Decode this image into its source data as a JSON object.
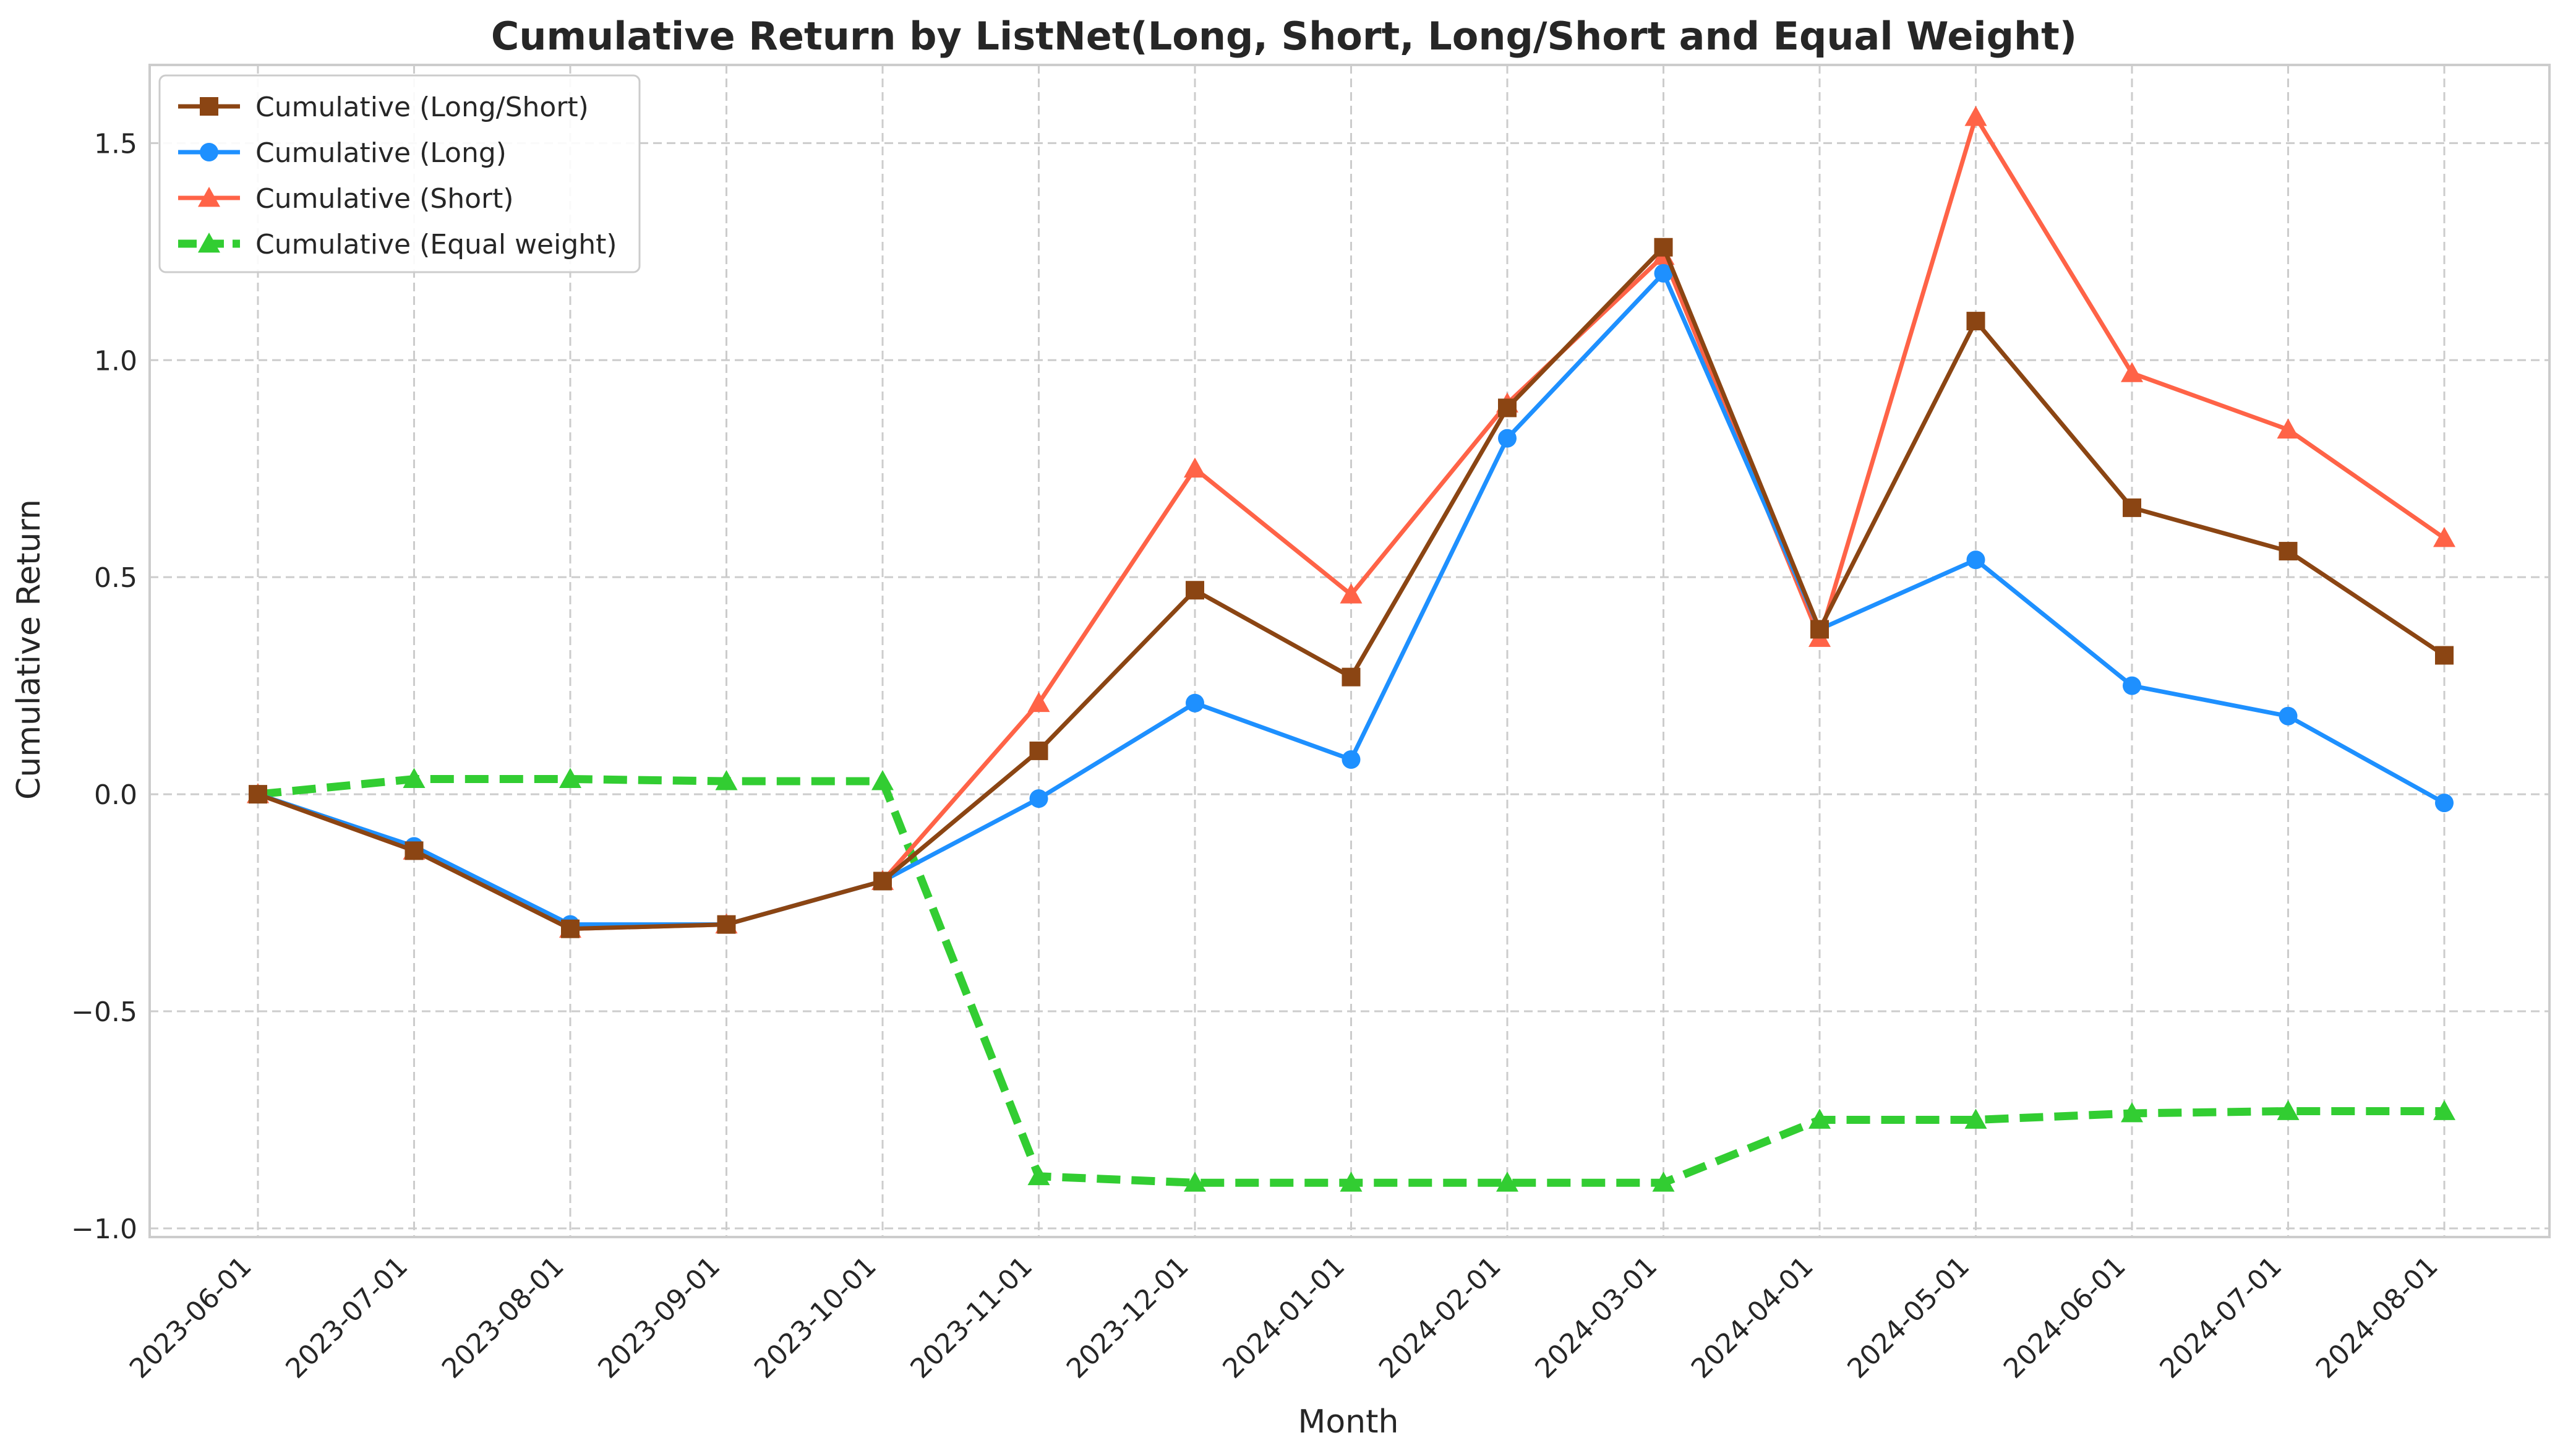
{
  "chart_data": {
    "type": "line",
    "title": "Cumulative Return by ListNet(Long, Short, Long/Short and Equal Weight)",
    "xlabel": "Month",
    "ylabel": "Cumulative Return",
    "ylim": [
      -1.02,
      1.68
    ],
    "yticks": [
      -1.0,
      -0.5,
      0.0,
      0.5,
      1.0,
      1.5
    ],
    "ytick_labels": [
      "−1.0",
      "−0.5",
      "0.0",
      "0.5",
      "1.0",
      "1.5"
    ],
    "grid": true,
    "legend_position": "top-left",
    "categories": [
      "2023-06-01",
      "2023-07-01",
      "2023-08-01",
      "2023-09-01",
      "2023-10-01",
      "2023-11-01",
      "2023-12-01",
      "2024-01-01",
      "2024-02-01",
      "2024-03-01",
      "2024-04-01",
      "2024-05-01",
      "2024-06-01",
      "2024-07-01",
      "2024-08-01"
    ],
    "series": [
      {
        "name": "Cumulative (Long/Short)",
        "color": "#8b4513",
        "marker": "square",
        "dashed": false,
        "values": [
          0.0,
          -0.13,
          -0.31,
          -0.3,
          -0.2,
          0.1,
          0.47,
          0.27,
          0.89,
          1.26,
          0.38,
          1.09,
          0.66,
          0.56,
          0.32
        ]
      },
      {
        "name": "Cumulative (Long)",
        "color": "#1e90ff",
        "marker": "circle",
        "dashed": false,
        "values": [
          0.0,
          -0.12,
          -0.3,
          -0.3,
          -0.2,
          -0.01,
          0.21,
          0.08,
          0.82,
          1.2,
          0.38,
          0.54,
          0.25,
          0.18,
          -0.02
        ]
      },
      {
        "name": "Cumulative (Short)",
        "color": "#ff6347",
        "marker": "triangle",
        "dashed": false,
        "values": [
          0.0,
          -0.13,
          -0.31,
          -0.3,
          -0.2,
          0.21,
          0.75,
          0.46,
          0.9,
          1.24,
          0.36,
          1.56,
          0.97,
          0.84,
          0.59
        ]
      },
      {
        "name": "Cumulative (Equal weight)",
        "color": "#32cd32",
        "marker": "triangle",
        "dashed": true,
        "values": [
          0.0,
          0.035,
          0.035,
          0.03,
          0.03,
          -0.88,
          -0.895,
          -0.895,
          -0.895,
          -0.895,
          -0.75,
          -0.75,
          -0.735,
          -0.73,
          -0.73
        ]
      }
    ]
  }
}
